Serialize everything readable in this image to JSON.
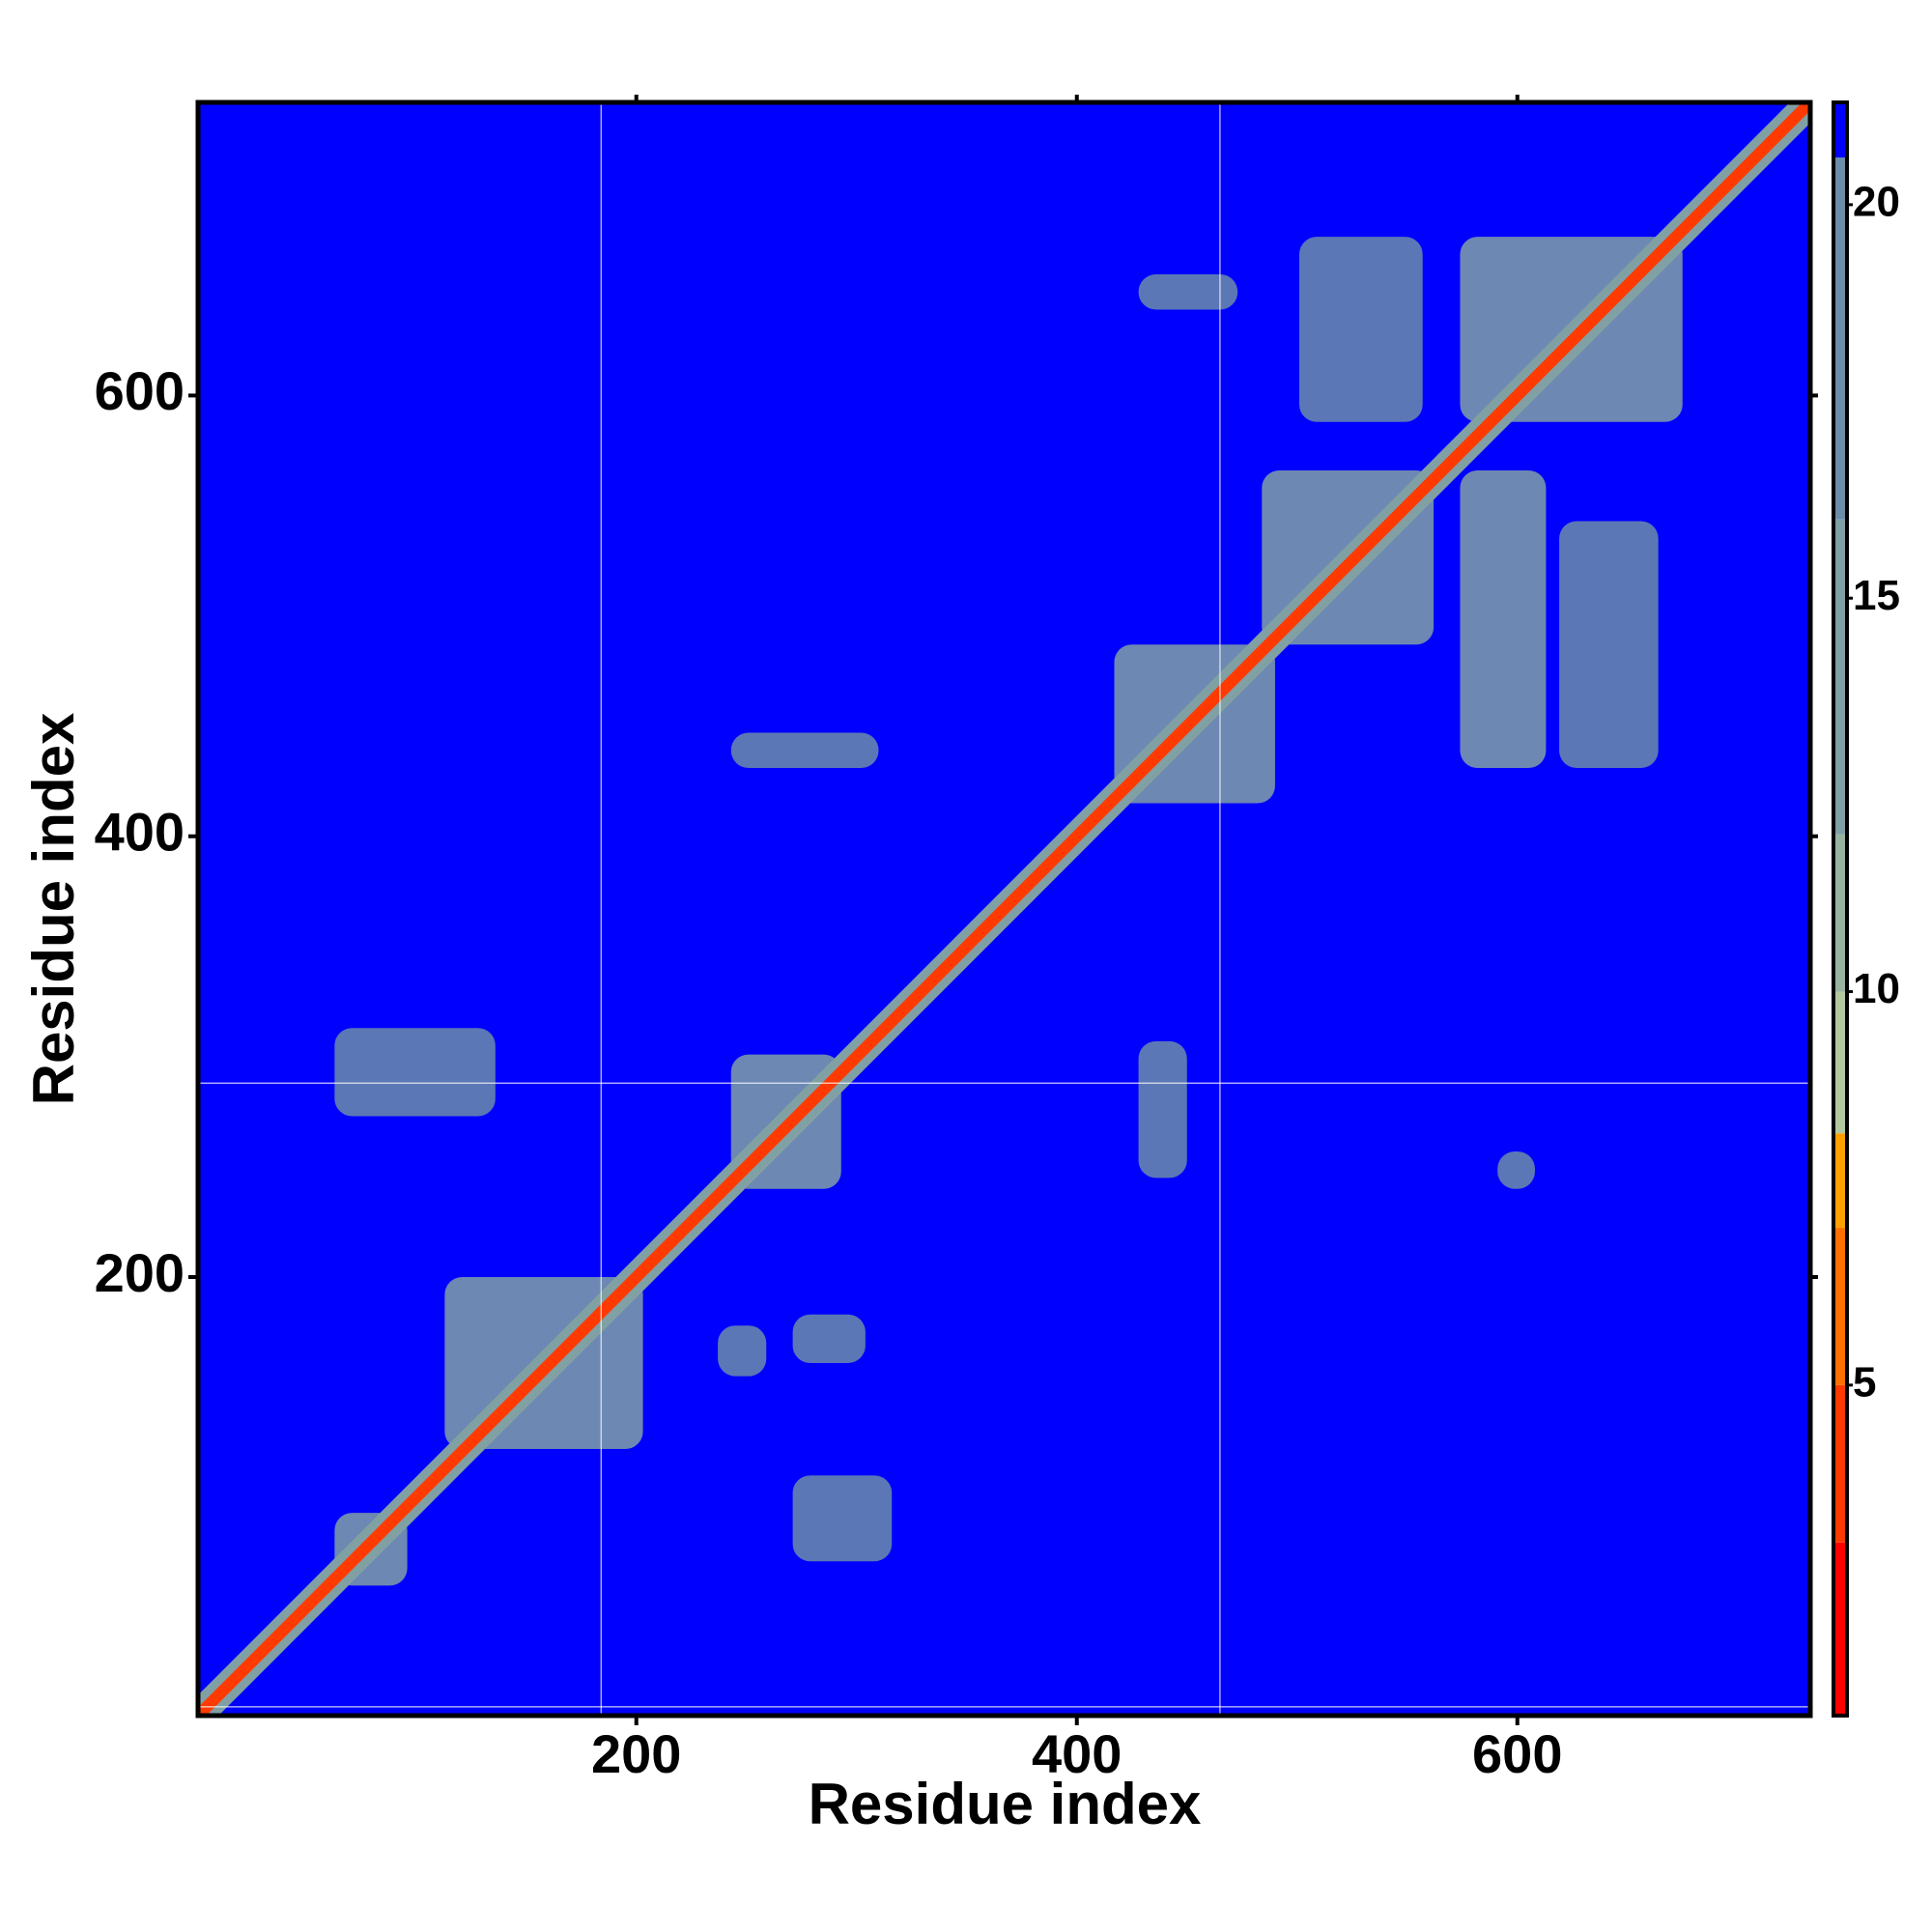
{
  "chart_data": {
    "type": "contact-map",
    "x_label": "Residue index",
    "y_label": "Residue index",
    "xlim": [
      1,
      733
    ],
    "ylim": [
      1,
      733
    ],
    "xticks": [
      200,
      400,
      600
    ],
    "yticks": [
      200,
      400,
      600
    ],
    "clim": [
      0.8,
      21.3
    ],
    "cticks": [
      5,
      10,
      15,
      20
    ],
    "colorscale": [
      {
        "value": 0.8,
        "color": "#ff0000"
      },
      {
        "value": 3,
        "color": "#ff3a00"
      },
      {
        "value": 5,
        "color": "#ff7000"
      },
      {
        "value": 7,
        "color": "#ffa000"
      },
      {
        "value": 8.2,
        "color": "#b4c8a0"
      },
      {
        "value": 10,
        "color": "#98b4a0"
      },
      {
        "value": 12,
        "color": "#80a0a4"
      },
      {
        "value": 16,
        "color": "#6c8ca8"
      },
      {
        "value": 20.6,
        "color": "#0000ff"
      }
    ],
    "background_value": 21,
    "diagonal": {
      "value": 3,
      "band_value": 12
    },
    "reference_lines": {
      "x": [
        184,
        465
      ],
      "y": [
        288,
        5
      ]
    },
    "blocks": [
      {
        "x": [
          417,
          490
        ],
        "y": [
          415,
          487
        ],
        "value": 13
      },
      {
        "x": [
          574,
          675
        ],
        "y": [
          588,
          672
        ],
        "value": 13
      },
      {
        "x": [
          501,
          557
        ],
        "y": [
          588,
          672
        ],
        "value": 16
      },
      {
        "x": [
          428,
          473
        ],
        "y": [
          639,
          655
        ],
        "value": 16
      },
      {
        "x": [
          574,
          613
        ],
        "y": [
          431,
          566
        ],
        "value": 15
      },
      {
        "x": [
          619,
          664
        ],
        "y": [
          431,
          543
        ],
        "value": 16
      },
      {
        "x": [
          484,
          562
        ],
        "y": [
          487,
          566
        ],
        "value": 14
      },
      {
        "x": [
          243,
          293
        ],
        "y": [
          240,
          301
        ],
        "value": 13
      },
      {
        "x": [
          113,
          203
        ],
        "y": [
          122,
          200
        ],
        "value": 13
      },
      {
        "x": [
          63,
          96
        ],
        "y": [
          60,
          93
        ],
        "value": 15
      },
      {
        "x": [
          271,
          316
        ],
        "y": [
          71,
          110
        ],
        "value": 17
      },
      {
        "x": [
          63,
          136
        ],
        "y": [
          273,
          313
        ],
        "value": 17
      },
      {
        "x": [
          243,
          310
        ],
        "y": [
          431,
          447
        ],
        "value": 17
      },
      {
        "x": [
          237,
          259
        ],
        "y": [
          155,
          178
        ],
        "value": 17
      },
      {
        "x": [
          428,
          450
        ],
        "y": [
          245,
          307
        ],
        "value": 17
      },
      {
        "x": [
          591,
          608
        ],
        "y": [
          240,
          257
        ],
        "value": 17
      },
      {
        "x": [
          271,
          304
        ],
        "y": [
          161,
          183
        ],
        "value": 17
      }
    ]
  }
}
